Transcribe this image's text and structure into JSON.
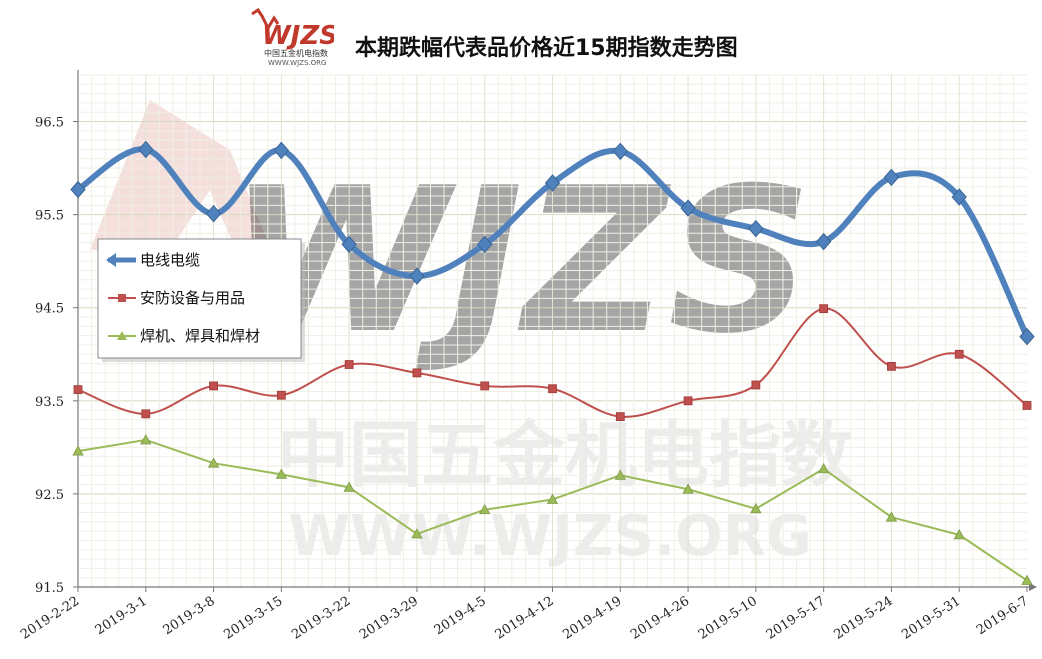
{
  "header": {
    "title": "本期跌幅代表品价格近15期指数走势图",
    "logo_text": "WJZS",
    "logo_subtext_cn": "中国五金机电指数",
    "logo_subtext_url": "WWW.WJZS.ORG"
  },
  "watermark": {
    "big_text": "WJZS",
    "cn_text": "中国五金机电指数",
    "url_text": "WWW.WJZS.ORG"
  },
  "colors": {
    "series_blue": "#4f81bd",
    "series_red": "#c0504d",
    "series_green": "#9bbb59",
    "grid": "#dcdcc8",
    "watermark_red": "#e8b8b4"
  },
  "chart_data": {
    "type": "line",
    "title": "本期跌幅代表品价格近15期指数走势图",
    "xlabel": "",
    "ylabel": "",
    "ylim": [
      91.5,
      97.0
    ],
    "yticks": [
      91.5,
      92.5,
      93.5,
      94.5,
      95.5,
      96.5
    ],
    "grid": true,
    "legend_position": "middle-left",
    "categories": [
      "2019-2-22",
      "2019-3-1",
      "2019-3-8",
      "2019-3-15",
      "2019-3-22",
      "2019-3-29",
      "2019-4-5",
      "2019-4-12",
      "2019-4-19",
      "2019-4-26",
      "2019-5-10",
      "2019-5-17",
      "2019-5-24",
      "2019-5-31",
      "2019-6-7"
    ],
    "series": [
      {
        "name": "电线电缆",
        "color": "#4f81bd",
        "marker": "diamond",
        "smooth": true,
        "values": [
          95.77,
          96.2,
          95.51,
          96.19,
          95.18,
          94.84,
          95.18,
          95.84,
          96.18,
          95.57,
          95.35,
          95.21,
          95.9,
          95.69,
          94.19
        ]
      },
      {
        "name": "安防设备与用品",
        "color": "#c0504d",
        "marker": "square",
        "smooth": true,
        "values": [
          93.62,
          93.36,
          93.66,
          93.56,
          93.89,
          93.8,
          93.66,
          93.63,
          93.33,
          93.5,
          93.67,
          94.49,
          93.87,
          94.0,
          93.45
        ]
      },
      {
        "name": "焊机、焊具和焊材",
        "color": "#9bbb59",
        "marker": "triangle",
        "smooth": false,
        "values": [
          92.96,
          93.08,
          92.83,
          92.71,
          92.57,
          92.07,
          92.33,
          92.44,
          92.7,
          92.55,
          92.34,
          92.77,
          92.25,
          92.06,
          91.57
        ]
      }
    ]
  }
}
